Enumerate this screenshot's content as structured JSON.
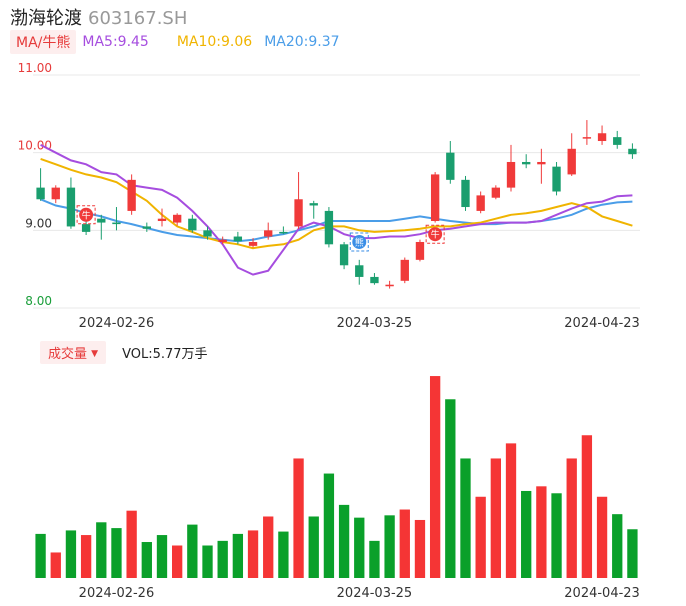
{
  "header": {
    "name": "渤海轮渡",
    "code": "603167.SH"
  },
  "ma": {
    "tag": "MA/牛熊",
    "ma5": "MA5:9.45",
    "ma10": "MA10:9.06",
    "ma20": "MA20:9.37"
  },
  "volume": {
    "tag": "成交量",
    "value": "VOL:5.77万手"
  },
  "colors": {
    "up": "#f03a3a",
    "down": "#1a9e6e",
    "vol_up": "#f53535",
    "vol_down": "#0aa02a",
    "ma5": "#a64ddf",
    "ma10": "#f0b400",
    "ma20": "#4a9de8",
    "axis_red": "#e63b3b",
    "axis_green": "#1a9e3a"
  },
  "chart_data": {
    "type": "candlestick",
    "y_ticks": [
      "11.00",
      "10.00",
      "9.00",
      "8.00"
    ],
    "ylim": [
      8.0,
      11.0
    ],
    "x_tick_labels": [
      "2024-02-26",
      "2024-03-25",
      "2024-04-23"
    ],
    "x_tick_index": [
      5,
      22,
      37
    ],
    "candles": [
      [
        9.55,
        9.4,
        9.8,
        9.38
      ],
      [
        9.4,
        9.55,
        9.58,
        9.35
      ],
      [
        9.55,
        9.05,
        9.68,
        9.02
      ],
      [
        9.08,
        8.98,
        9.12,
        8.94
      ],
      [
        9.15,
        9.1,
        9.2,
        8.88
      ],
      [
        9.1,
        9.08,
        9.3,
        9.0
      ],
      [
        9.25,
        9.65,
        9.72,
        9.2
      ],
      [
        9.05,
        9.02,
        9.1,
        8.98
      ],
      [
        9.12,
        9.15,
        9.28,
        9.05
      ],
      [
        9.1,
        9.2,
        9.22,
        9.06
      ],
      [
        9.15,
        9.0,
        9.2,
        8.97
      ],
      [
        9.0,
        8.92,
        9.05,
        8.88
      ],
      [
        8.85,
        8.88,
        8.92,
        8.82
      ],
      [
        8.92,
        8.86,
        8.98,
        8.82
      ],
      [
        8.8,
        8.85,
        8.9,
        8.78
      ],
      [
        8.92,
        9.0,
        9.1,
        8.88
      ],
      [
        8.98,
        8.97,
        9.05,
        8.95
      ],
      [
        9.05,
        9.4,
        9.75,
        9.02
      ],
      [
        9.35,
        9.32,
        9.38,
        9.15
      ],
      [
        9.25,
        8.82,
        9.3,
        8.78
      ],
      [
        8.82,
        8.55,
        8.85,
        8.5
      ],
      [
        8.55,
        8.4,
        8.62,
        8.3
      ],
      [
        8.4,
        8.32,
        8.45,
        8.3
      ],
      [
        8.28,
        8.3,
        8.35,
        8.25
      ],
      [
        8.35,
        8.62,
        8.65,
        8.32
      ],
      [
        8.62,
        8.85,
        8.88,
        8.6
      ],
      [
        9.12,
        9.72,
        9.75,
        9.1
      ],
      [
        10.0,
        9.65,
        10.15,
        9.6
      ],
      [
        9.65,
        9.3,
        9.7,
        9.25
      ],
      [
        9.25,
        9.45,
        9.5,
        9.22
      ],
      [
        9.42,
        9.55,
        9.58,
        9.4
      ],
      [
        9.55,
        9.88,
        10.1,
        9.5
      ],
      [
        9.88,
        9.85,
        9.98,
        9.8
      ],
      [
        9.85,
        9.88,
        10.05,
        9.6
      ],
      [
        9.82,
        9.5,
        9.88,
        9.45
      ],
      [
        9.72,
        10.05,
        10.25,
        9.7
      ],
      [
        10.2,
        10.2,
        10.42,
        10.1
      ],
      [
        10.15,
        10.25,
        10.35,
        10.1
      ],
      [
        10.2,
        10.1,
        10.28,
        10.05
      ],
      [
        10.05,
        9.98,
        10.12,
        9.92
      ]
    ],
    "ma5": [
      10.1,
      10.0,
      9.9,
      9.85,
      9.75,
      9.72,
      9.58,
      9.55,
      9.52,
      9.42,
      9.25,
      9.05,
      8.82,
      8.52,
      8.43,
      8.48,
      8.75,
      9.02,
      9.1,
      9.05,
      8.95,
      8.9,
      8.9,
      8.92,
      8.92,
      8.95,
      9.0,
      9.02,
      9.05,
      9.08,
      9.1,
      9.1,
      9.1,
      9.12,
      9.2,
      9.28,
      9.35,
      9.37,
      9.44,
      9.45
    ],
    "ma10": [
      9.92,
      9.85,
      9.78,
      9.72,
      9.68,
      9.62,
      9.5,
      9.38,
      9.2,
      9.05,
      8.98,
      8.9,
      8.85,
      8.82,
      8.77,
      8.8,
      8.82,
      8.88,
      9.0,
      9.05,
      9.05,
      9.0,
      8.98,
      8.99,
      9.0,
      9.02,
      9.05,
      9.05,
      9.08,
      9.1,
      9.15,
      9.2,
      9.22,
      9.25,
      9.3,
      9.35,
      9.3,
      9.18,
      9.12,
      9.06
    ],
    "ma20": [
      9.4,
      9.32,
      9.28,
      9.22,
      9.18,
      9.12,
      9.08,
      9.03,
      8.98,
      8.94,
      8.92,
      8.9,
      8.88,
      8.86,
      8.88,
      8.92,
      8.95,
      9.0,
      9.05,
      9.12,
      9.12,
      9.12,
      9.12,
      9.12,
      9.15,
      9.18,
      9.15,
      9.12,
      9.1,
      9.08,
      9.08,
      9.1,
      9.1,
      9.12,
      9.15,
      9.2,
      9.28,
      9.33,
      9.36,
      9.37
    ],
    "signals": [
      {
        "index": 3,
        "label": "牛",
        "price": 9.2,
        "color": "#f03a3a"
      },
      {
        "index": 21,
        "label": "熊",
        "price": 8.85,
        "color": "#3a8ee6"
      },
      {
        "index": 26,
        "label": "牛",
        "price": 8.95,
        "color": "#f03a3a"
      }
    ],
    "volume": [
      0.38,
      0.22,
      0.41,
      0.37,
      0.48,
      0.43,
      0.58,
      0.31,
      0.37,
      0.28,
      0.46,
      0.28,
      0.32,
      0.38,
      0.41,
      0.53,
      0.4,
      1.03,
      0.53,
      0.9,
      0.63,
      0.52,
      0.32,
      0.54,
      0.59,
      0.5,
      1.74,
      1.54,
      1.03,
      0.7,
      1.03,
      1.16,
      0.75,
      0.79,
      0.73,
      1.03,
      1.23,
      0.7,
      0.55,
      0.42
    ],
    "volume_up": [
      false,
      true,
      false,
      true,
      false,
      false,
      true,
      false,
      false,
      true,
      false,
      false,
      false,
      false,
      true,
      true,
      false,
      true,
      false,
      false,
      false,
      false,
      false,
      false,
      true,
      true,
      true,
      false,
      false,
      true,
      true,
      true,
      false,
      true,
      false,
      true,
      true,
      true,
      false,
      false
    ]
  }
}
